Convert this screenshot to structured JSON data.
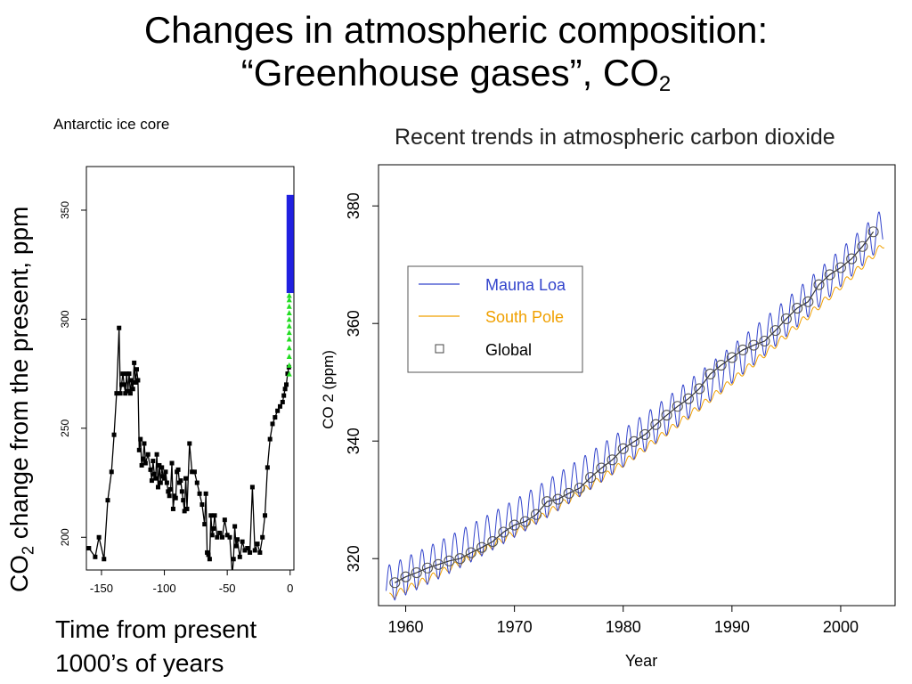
{
  "slide": {
    "title_line1": "Changes in atmospheric composition:",
    "title_line2_main": "“Greenhouse gases”, CO",
    "title_line2_sub": "2",
    "left_ylabel_main": "CO",
    "left_ylabel_sub": "2",
    "left_ylabel_rest": " change from the present, ppm",
    "time_caption_line1": "Time from present",
    "time_caption_line2": "1000’s of years"
  },
  "chart_data": [
    {
      "type": "line",
      "title": "Antarctic ice core",
      "xlabel": "",
      "ylabel": "",
      "xlim": [
        -162,
        3
      ],
      "ylim": [
        185,
        370
      ],
      "x_ticks": [
        -150,
        -100,
        -50,
        0
      ],
      "y_ticks": [
        200,
        250,
        300,
        350
      ],
      "grid": false,
      "legend": "none",
      "colors": {
        "ice_core": "#000000",
        "modern_bar": "#2020e0",
        "triangles": "#22dd22"
      },
      "series": [
        {
          "name": "",
          "x": [
            -160,
            -155,
            -152,
            -148,
            -145,
            -142,
            -140,
            -138,
            -136,
            -135,
            -134,
            -133,
            -132,
            -131,
            -130,
            -129,
            -128,
            -127,
            -126,
            -125,
            -124,
            -123,
            -122,
            -121,
            -120,
            -119,
            -118,
            -117,
            -116,
            -115,
            -113,
            -111,
            -110,
            -109,
            -108,
            -107,
            -106,
            -105,
            -104,
            -103,
            -102,
            -101,
            -100,
            -99,
            -98,
            -97,
            -96,
            -95,
            -94,
            -93,
            -92,
            -91,
            -90,
            -89,
            -88,
            -87,
            -86,
            -85,
            -84,
            -83,
            -82,
            -80,
            -78,
            -76,
            -74,
            -72,
            -70,
            -68,
            -67,
            -66,
            -65,
            -64,
            -63,
            -62,
            -61,
            -60,
            -58,
            -56,
            -54,
            -52,
            -50,
            -48,
            -46,
            -45,
            -44,
            -43,
            -42,
            -40,
            -38,
            -36,
            -34,
            -32,
            -30,
            -28,
            -26,
            -24,
            -22,
            -20,
            -18,
            -16,
            -14,
            -12,
            -10,
            -8,
            -6,
            -5,
            -4,
            -3,
            -2,
            -1
          ],
          "y": [
            195,
            191,
            200,
            190,
            217,
            230,
            247,
            266,
            296,
            266,
            270,
            275,
            270,
            266,
            275,
            267,
            275,
            266,
            272,
            268,
            280,
            271,
            277,
            272,
            240,
            245,
            233,
            236,
            243,
            234,
            238,
            231,
            226,
            235,
            229,
            227,
            238,
            223,
            233,
            225,
            232,
            228,
            227,
            230,
            225,
            221,
            219,
            222,
            234,
            213,
            219,
            218,
            230,
            231,
            225,
            226,
            221,
            217,
            212,
            227,
            213,
            243,
            230,
            230,
            225,
            220,
            215,
            206,
            220,
            193,
            192,
            190,
            210,
            201,
            204,
            210,
            200,
            202,
            200,
            208,
            201,
            200,
            183,
            190,
            205,
            196,
            199,
            191,
            198,
            194,
            195,
            193,
            223,
            194,
            197,
            193,
            200,
            210,
            232,
            245,
            252,
            255,
            258,
            260,
            262,
            265,
            268,
            270,
            275,
            278
          ]
        }
      ],
      "triangles_y": [
        275,
        279,
        283,
        287,
        291,
        294,
        297,
        300,
        303,
        306,
        309,
        311
      ],
      "modern_bar": {
        "x": 0,
        "y_from": 312,
        "y_to": 357
      }
    },
    {
      "type": "line",
      "title": "Recent trends in atmospheric carbon dioxide",
      "xlabel": "Year",
      "ylabel": "CO 2  (ppm)",
      "xlim": [
        1957.5,
        2005
      ],
      "ylim": [
        312,
        387
      ],
      "x_ticks": [
        1960,
        1970,
        1980,
        1990,
        2000
      ],
      "y_ticks": [
        320,
        340,
        360,
        380
      ],
      "grid": false,
      "legend": "top-left",
      "colors": {
        "mauna_loa": "#3344cc",
        "south_pole": "#f0a000",
        "global": "#555555"
      },
      "series": [
        {
          "name": "Mauna Loa",
          "x_start": 1958.2,
          "x_end": 2003.9,
          "trend_start": 315.5,
          "trend_end": 376.5,
          "seasonal_amplitude": 3.2
        },
        {
          "name": "South Pole",
          "x_start": 1958.5,
          "x_end": 2004.0,
          "trend_start": 313.5,
          "trend_end": 373.5,
          "seasonal_amplitude": 0.6
        },
        {
          "name": "Global",
          "x": [
            1959,
            1960,
            1961,
            1962,
            1963,
            1964,
            1965,
            1966,
            1967,
            1968,
            1969,
            1970,
            1971,
            1972,
            1973,
            1974,
            1975,
            1976,
            1977,
            1978,
            1979,
            1980,
            1981,
            1982,
            1983,
            1984,
            1985,
            1986,
            1987,
            1988,
            1989,
            1990,
            1991,
            1992,
            1993,
            1994,
            1995,
            1996,
            1997,
            1998,
            1999,
            2000,
            2001,
            2002,
            2003
          ],
          "y": [
            315.9,
            316.9,
            317.6,
            318.4,
            319.0,
            319.6,
            320.0,
            321.0,
            321.9,
            322.9,
            324.5,
            325.7,
            326.3,
            327.5,
            329.7,
            330.1,
            331.1,
            332.0,
            333.8,
            335.4,
            336.8,
            338.7,
            339.9,
            341.1,
            342.8,
            344.4,
            345.9,
            347.2,
            348.9,
            351.4,
            352.9,
            354.2,
            355.5,
            356.3,
            357.0,
            358.8,
            360.8,
            362.6,
            363.7,
            366.6,
            368.3,
            369.5,
            371.0,
            373.1,
            375.6
          ]
        }
      ]
    }
  ]
}
